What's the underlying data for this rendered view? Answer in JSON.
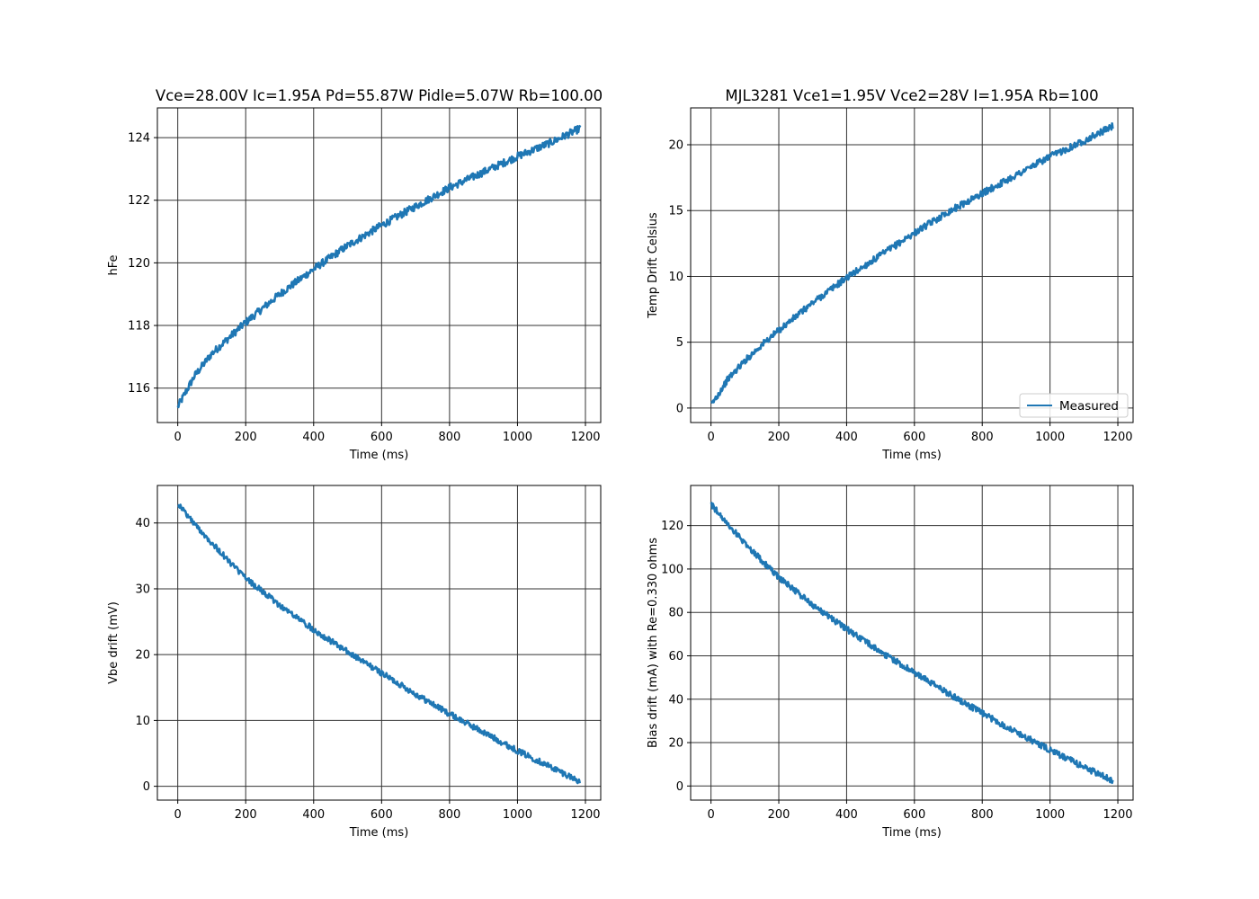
{
  "chart_data": [
    {
      "type": "line",
      "title": "Vce=28.00V Ic=1.95A Pd=55.87W Pidle=5.07W Rb=100.00",
      "xlabel": "Time (ms)",
      "ylabel": "hFe",
      "xlim": [
        -60,
        1245
      ],
      "ylim": [
        114.9,
        124.95
      ],
      "xticks": [
        0,
        200,
        400,
        600,
        800,
        1000,
        1200
      ],
      "yticks": [
        116,
        118,
        120,
        122,
        124
      ],
      "grid": true,
      "legend": null,
      "series": [
        {
          "color": "#1f77b4",
          "noise": 0.12,
          "x": [
            0,
            50,
            100,
            150,
            200,
            300,
            400,
            500,
            600,
            700,
            800,
            900,
            1000,
            1100,
            1185
          ],
          "y": [
            115.4,
            116.4,
            117.1,
            117.6,
            118.1,
            119.0,
            119.8,
            120.55,
            121.2,
            121.8,
            122.4,
            122.9,
            123.4,
            123.85,
            124.3
          ]
        }
      ]
    },
    {
      "type": "line",
      "title": "MJL3281 Vce1=1.95V Vce2=28V I=1.95A Rb=100",
      "xlabel": "Time (ms)",
      "ylabel": "Temp Drift Celsius",
      "xlim": [
        -60,
        1245
      ],
      "ylim": [
        -1.1,
        22.8
      ],
      "xticks": [
        0,
        200,
        400,
        600,
        800,
        1000,
        1200
      ],
      "yticks": [
        0,
        5,
        10,
        15,
        20
      ],
      "grid": true,
      "legend": {
        "placement": "lower-right",
        "entries": [
          "Measured"
        ]
      },
      "series": [
        {
          "name": "Measured",
          "color": "#1f77b4",
          "noise": 0.25,
          "x": [
            0,
            50,
            100,
            150,
            200,
            300,
            400,
            500,
            600,
            700,
            800,
            900,
            1000,
            1100,
            1185
          ],
          "y": [
            0.2,
            2.2,
            3.6,
            4.8,
            5.9,
            8.0,
            9.9,
            11.6,
            13.3,
            14.9,
            16.3,
            17.7,
            19.1,
            20.3,
            21.4
          ]
        }
      ]
    },
    {
      "type": "line",
      "title": "",
      "xlabel": "Time (ms)",
      "ylabel": "Vbe drift (mV)",
      "xlim": [
        -60,
        1245
      ],
      "ylim": [
        -2.1,
        45.7
      ],
      "xticks": [
        0,
        200,
        400,
        600,
        800,
        1000,
        1200
      ],
      "yticks": [
        0,
        10,
        20,
        30,
        40
      ],
      "grid": true,
      "legend": null,
      "series": [
        {
          "color": "#1f77b4",
          "noise": 0.45,
          "x": [
            0,
            50,
            100,
            150,
            200,
            300,
            400,
            500,
            600,
            700,
            800,
            900,
            1000,
            1100,
            1185
          ],
          "y": [
            43.0,
            39.8,
            37.0,
            34.2,
            31.6,
            27.5,
            23.8,
            20.4,
            17.2,
            14.0,
            11.0,
            8.2,
            5.4,
            2.9,
            0.7
          ]
        }
      ]
    },
    {
      "type": "line",
      "title": "",
      "xlabel": "Time (ms)",
      "ylabel": "Bias drift (mA) with Re=0.330 ohms",
      "xlim": [
        -60,
        1245
      ],
      "ylim": [
        -6.5,
        138.5
      ],
      "xticks": [
        0,
        200,
        400,
        600,
        800,
        1000,
        1200
      ],
      "yticks": [
        0,
        20,
        40,
        60,
        80,
        100,
        120
      ],
      "grid": true,
      "legend": null,
      "series": [
        {
          "color": "#1f77b4",
          "noise": 1.4,
          "x": [
            0,
            50,
            100,
            150,
            200,
            300,
            400,
            500,
            600,
            700,
            800,
            900,
            1000,
            1100,
            1185
          ],
          "y": [
            130.0,
            120.5,
            112.0,
            103.8,
            96.2,
            83.5,
            72.3,
            61.9,
            52.2,
            42.7,
            33.5,
            24.9,
            16.5,
            8.8,
            2.3
          ]
        }
      ]
    }
  ]
}
